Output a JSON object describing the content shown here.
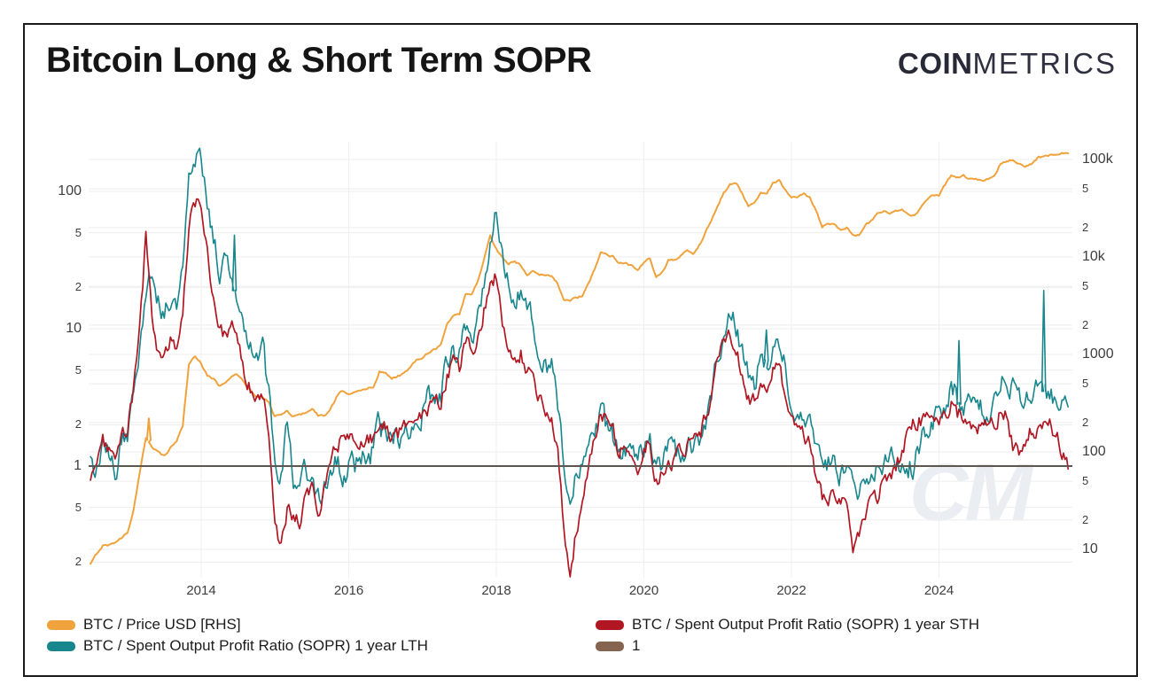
{
  "header": {
    "title": "Bitcoin Long & Short Term SOPR",
    "logo": {
      "bold": "COIN",
      "light": "METRICS"
    }
  },
  "watermark": "CM",
  "legend": {
    "columns": [
      [
        {
          "label": "BTC / Price USD [RHS]",
          "color": "#f0a33c"
        },
        {
          "label": "BTC / Spent Output Profit Ratio (SOPR) 1 year LTH",
          "color": "#17868d"
        }
      ],
      [
        {
          "label": "BTC / Spent Output Profit Ratio (SOPR) 1 year STH",
          "color": "#b01723"
        },
        {
          "label": "1",
          "color": "#85654f"
        }
      ]
    ]
  },
  "chart_data": {
    "type": "line",
    "title": "Bitcoin Long & Short Term SOPR",
    "grid": true,
    "legend_position": "bottom",
    "x_axis": {
      "unit": "year",
      "range": [
        2012.47,
        2025.85
      ],
      "ticks": [
        {
          "v": 2014,
          "label": "2014"
        },
        {
          "v": 2016,
          "label": "2016"
        },
        {
          "v": 2018,
          "label": "2018"
        },
        {
          "v": 2020,
          "label": "2020"
        },
        {
          "v": 2022,
          "label": "2022"
        },
        {
          "v": 2024,
          "label": "2024"
        }
      ]
    },
    "left_axis": {
      "scale": "log",
      "range": [
        0.17,
        230
      ],
      "ticks": [
        {
          "v": 100,
          "label": "100",
          "major": true
        },
        {
          "v": 50,
          "label": "5",
          "major": false
        },
        {
          "v": 20,
          "label": "2",
          "major": false
        },
        {
          "v": 10,
          "label": "10",
          "major": true
        },
        {
          "v": 5,
          "label": "5",
          "major": false
        },
        {
          "v": 2,
          "label": "2",
          "major": false
        },
        {
          "v": 1,
          "label": "1",
          "major": true
        },
        {
          "v": 0.5,
          "label": "5",
          "major": false
        },
        {
          "v": 0.2,
          "label": "2",
          "major": false
        }
      ]
    },
    "right_axis": {
      "scale": "log",
      "unit": "USD",
      "range": [
        8,
        150000
      ],
      "ticks": [
        {
          "v": 100000,
          "label": "100k",
          "major": true
        },
        {
          "v": 50000,
          "label": "5",
          "major": false
        },
        {
          "v": 20000,
          "label": "2",
          "major": false
        },
        {
          "v": 10000,
          "label": "10k",
          "major": true
        },
        {
          "v": 5000,
          "label": "5",
          "major": false
        },
        {
          "v": 2000,
          "label": "2",
          "major": false
        },
        {
          "v": 1000,
          "label": "1000",
          "major": true
        },
        {
          "v": 500,
          "label": "5",
          "major": false
        },
        {
          "v": 200,
          "label": "2",
          "major": false
        },
        {
          "v": 100,
          "label": "100",
          "major": true
        },
        {
          "v": 50,
          "label": "5",
          "major": false
        },
        {
          "v": 20,
          "label": "2",
          "major": false
        },
        {
          "v": 10,
          "label": "10",
          "major": true
        }
      ]
    },
    "series": [
      {
        "name": "BTC / Price USD [RHS]",
        "axis": "right",
        "color": "#f0a33c",
        "width": 2,
        "x_start": 2012.5,
        "step_months": 1,
        "noise_log10": 0.01,
        "spikes": [
          [
            2013.29,
            220
          ]
        ],
        "values": [
          7,
          9,
          11,
          11,
          12,
          13,
          15,
          25,
          60,
          140,
          115,
          100,
          90,
          110,
          130,
          185,
          800,
          950,
          810,
          620,
          560,
          470,
          530,
          620,
          610,
          510,
          430,
          360,
          365,
          320,
          230,
          240,
          260,
          233,
          237,
          255,
          282,
          238,
          234,
          270,
          360,
          425,
          400,
          420,
          415,
          445,
          470,
          660,
          655,
          575,
          605,
          640,
          730,
          870,
          950,
          1060,
          1150,
          1250,
          2050,
          2500,
          2600,
          4200,
          4100,
          5700,
          9500,
          16500,
          12000,
          9800,
          8500,
          8900,
          8200,
          6500,
          7300,
          6700,
          6500,
          6400,
          5300,
          3700,
          3500,
          3800,
          4000,
          5200,
          7600,
          11200,
          10500,
          10200,
          8800,
          8700,
          8100,
          7200,
          8800,
          9500,
          6000,
          7100,
          9200,
          9400,
          10300,
          11600,
          10700,
          13100,
          17800,
          24000,
          33000,
          45500,
          55000,
          58000,
          45000,
          34000,
          36000,
          45000,
          44000,
          58000,
          61000,
          48000,
          40000,
          40500,
          44000,
          40000,
          30500,
          20500,
          22500,
          21500,
          19500,
          20000,
          16500,
          16800,
          21000,
          23500,
          27500,
          29000,
          27500,
          29500,
          29800,
          27200,
          26500,
          32000,
          37000,
          43000,
          43000,
          55000,
          69500,
          65000,
          67500,
          63500,
          62500,
          59500,
          62500,
          68000,
          90000,
          97000,
          100000,
          90000,
          84000,
          90500,
          104000,
          106500,
          112000,
          110000,
          114500,
          112000
        ]
      },
      {
        "name": "BTC / Spent Output Profit Ratio (SOPR) 1 year LTH",
        "axis": "left",
        "color": "#17868d",
        "width": 1.6,
        "x_start": 2012.5,
        "step_months": 1,
        "noise_log10": 0.085,
        "spikes": [
          [
            2014.45,
            48
          ],
          [
            2021.66,
            9.8
          ],
          [
            2024.27,
            8.2
          ],
          [
            2025.42,
            19
          ]
        ],
        "values": [
          1.0,
          0.9,
          1.3,
          1.1,
          0.95,
          1.4,
          1.6,
          3.2,
          8,
          22,
          28,
          16,
          13,
          18,
          15,
          28,
          110,
          170,
          195,
          90,
          45,
          25,
          35,
          28,
          18,
          12,
          9,
          6,
          7,
          3.2,
          1.2,
          0.8,
          2.2,
          0.65,
          0.6,
          1.0,
          0.8,
          0.55,
          0.7,
          0.9,
          1.1,
          0.95,
          1.05,
          0.95,
          1.1,
          1.2,
          1.3,
          1.9,
          1.7,
          1.5,
          1.6,
          1.7,
          1.9,
          2.3,
          2.6,
          3.0,
          3.4,
          3.6,
          5.5,
          7.0,
          6.5,
          10,
          9,
          12,
          20,
          45,
          70,
          30,
          22,
          18,
          20,
          12,
          11,
          8,
          6,
          5,
          2.8,
          0.9,
          0.62,
          0.8,
          1.0,
          1.3,
          1.8,
          2.3,
          1.8,
          1.6,
          1.35,
          1.3,
          1.2,
          1.1,
          1.3,
          1.4,
          0.85,
          1.0,
          1.2,
          1.15,
          1.2,
          1.5,
          1.3,
          1.6,
          2.2,
          3.5,
          6.5,
          9,
          12,
          10,
          7,
          4.5,
          4.2,
          6,
          5.5,
          7.5,
          8.5,
          5,
          3.2,
          2.6,
          2.8,
          2.4,
          1.6,
          0.9,
          1.0,
          1.1,
          0.9,
          0.92,
          0.6,
          0.65,
          0.8,
          1.0,
          1.05,
          1.15,
          1.0,
          1.1,
          1.15,
          0.95,
          1.0,
          1.35,
          1.8,
          2.2,
          2.3,
          2.8,
          4.3,
          3.2,
          3.0,
          2.8,
          2.6,
          2.4,
          2.5,
          2.8,
          4.5,
          4.2,
          4.0,
          3.6,
          3.2,
          3.4,
          3.8,
          3.6,
          3.4,
          3.2,
          3.0,
          2.8
        ]
      },
      {
        "name": "BTC / Spent Output Profit Ratio (SOPR) 1 year STH",
        "axis": "left",
        "color": "#b01723",
        "width": 1.7,
        "x_start": 2012.5,
        "step_months": 1,
        "noise_log10": 0.055,
        "spikes": [],
        "values": [
          0.8,
          1.1,
          1.5,
          1.2,
          1.0,
          1.5,
          2.0,
          3.5,
          9,
          45,
          12,
          7,
          6,
          8,
          7.5,
          14,
          60,
          78,
          80,
          35,
          18,
          10,
          8.5,
          9.5,
          7.5,
          5,
          3.8,
          3.0,
          3.4,
          1.7,
          0.35,
          0.24,
          0.5,
          0.45,
          0.38,
          0.55,
          0.75,
          0.5,
          0.65,
          0.9,
          1.4,
          1.6,
          1.5,
          1.4,
          1.45,
          1.5,
          1.55,
          2.2,
          2.0,
          1.6,
          1.7,
          1.8,
          2.0,
          2.4,
          2.5,
          2.6,
          2.9,
          2.8,
          4.5,
          5.5,
          5.0,
          8,
          7,
          9,
          14,
          23,
          25,
          12,
          8,
          6.5,
          7,
          4.5,
          4.8,
          3.2,
          2.6,
          2.2,
          1.2,
          0.35,
          0.17,
          0.35,
          0.6,
          1.1,
          1.8,
          2.6,
          2.2,
          1.8,
          1.35,
          1.3,
          1.15,
          1.0,
          1.3,
          1.5,
          0.78,
          0.95,
          1.15,
          1.1,
          1.2,
          1.5,
          1.3,
          1.6,
          2.2,
          3.4,
          5.5,
          7.5,
          8.5,
          7.0,
          5.0,
          3.2,
          3.0,
          4.2,
          3.8,
          5.0,
          5.5,
          3.2,
          2.2,
          1.6,
          1.7,
          1.4,
          0.9,
          0.55,
          0.6,
          0.65,
          0.55,
          0.6,
          0.28,
          0.32,
          0.45,
          0.65,
          0.6,
          0.8,
          0.9,
          1.0,
          1.3,
          1.8,
          2.1,
          2.2,
          2.3,
          2.1,
          2.2,
          2.5,
          2.9,
          2.4,
          2.3,
          2.2,
          2.0,
          1.8,
          1.9,
          2.1,
          2.6,
          2.5,
          1.4,
          1.25,
          1.5,
          1.8,
          1.9,
          1.85,
          1.9,
          1.7,
          1.35,
          1.05
        ]
      },
      {
        "name": "1",
        "axis": "left",
        "color": "#5c564f",
        "width": 2,
        "constant": 1
      }
    ]
  }
}
